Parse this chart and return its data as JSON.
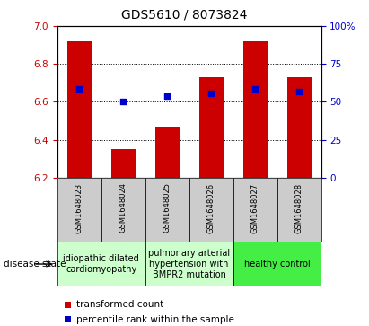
{
  "title": "GDS5610 / 8073824",
  "samples": [
    "GSM1648023",
    "GSM1648024",
    "GSM1648025",
    "GSM1648026",
    "GSM1648027",
    "GSM1648028"
  ],
  "bar_values": [
    6.92,
    6.35,
    6.47,
    6.73,
    6.92,
    6.73
  ],
  "dot_values": [
    6.67,
    6.6,
    6.63,
    6.645,
    6.67,
    6.655
  ],
  "ymin": 6.2,
  "ymax": 7.0,
  "yticks": [
    6.2,
    6.4,
    6.6,
    6.8,
    7.0
  ],
  "right_yticks": [
    0,
    25,
    50,
    75,
    100
  ],
  "bar_color": "#CC0000",
  "dot_color": "#0000CC",
  "groups": [
    {
      "start": 0,
      "end": 1,
      "label": "idiopathic dilated\ncardiomyopathy",
      "color": "#ccffcc"
    },
    {
      "start": 2,
      "end": 3,
      "label": "pulmonary arterial\nhypertension with\nBMPR2 mutation",
      "color": "#ccffcc"
    },
    {
      "start": 4,
      "end": 5,
      "label": "healthy control",
      "color": "#44ee44"
    }
  ],
  "sample_bg_color": "#cccccc",
  "disease_state_label": "disease state",
  "legend_bar_label": "transformed count",
  "legend_dot_label": "percentile rank within the sample",
  "title_fontsize": 10,
  "tick_fontsize": 7.5,
  "sample_fontsize": 6,
  "group_fontsize": 7,
  "legend_fontsize": 7.5
}
